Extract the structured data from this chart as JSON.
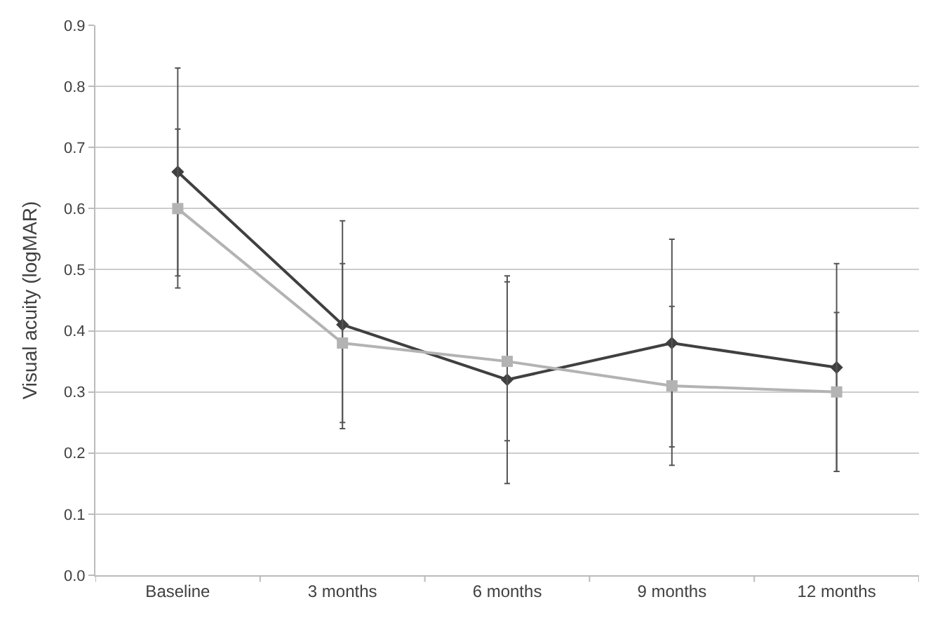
{
  "chart_data": {
    "type": "line",
    "ylabel": "Visual acuity (logMAR)",
    "categories": [
      "Baseline",
      "3 months",
      "6 months",
      "9 months",
      "12 months"
    ],
    "series": [
      {
        "color": "#404040",
        "marker": "diamond",
        "values": [
          0.66,
          0.41,
          0.32,
          0.38,
          0.34
        ],
        "errors": [
          0.17,
          0.17,
          0.17,
          0.17,
          0.17
        ]
      },
      {
        "color": "#b3b3b3",
        "marker": "square",
        "values": [
          0.6,
          0.38,
          0.35,
          0.31,
          0.3
        ],
        "errors": [
          0.13,
          0.13,
          0.13,
          0.13,
          0.13
        ]
      }
    ],
    "ylim": [
      0,
      0.9
    ],
    "yticks": [
      {
        "value": 0,
        "label": "0.0"
      },
      0.1,
      0.2,
      0.3,
      0.4,
      0.5,
      0.6,
      0.7,
      0.8,
      0.9
    ],
    "grid": "y"
  }
}
